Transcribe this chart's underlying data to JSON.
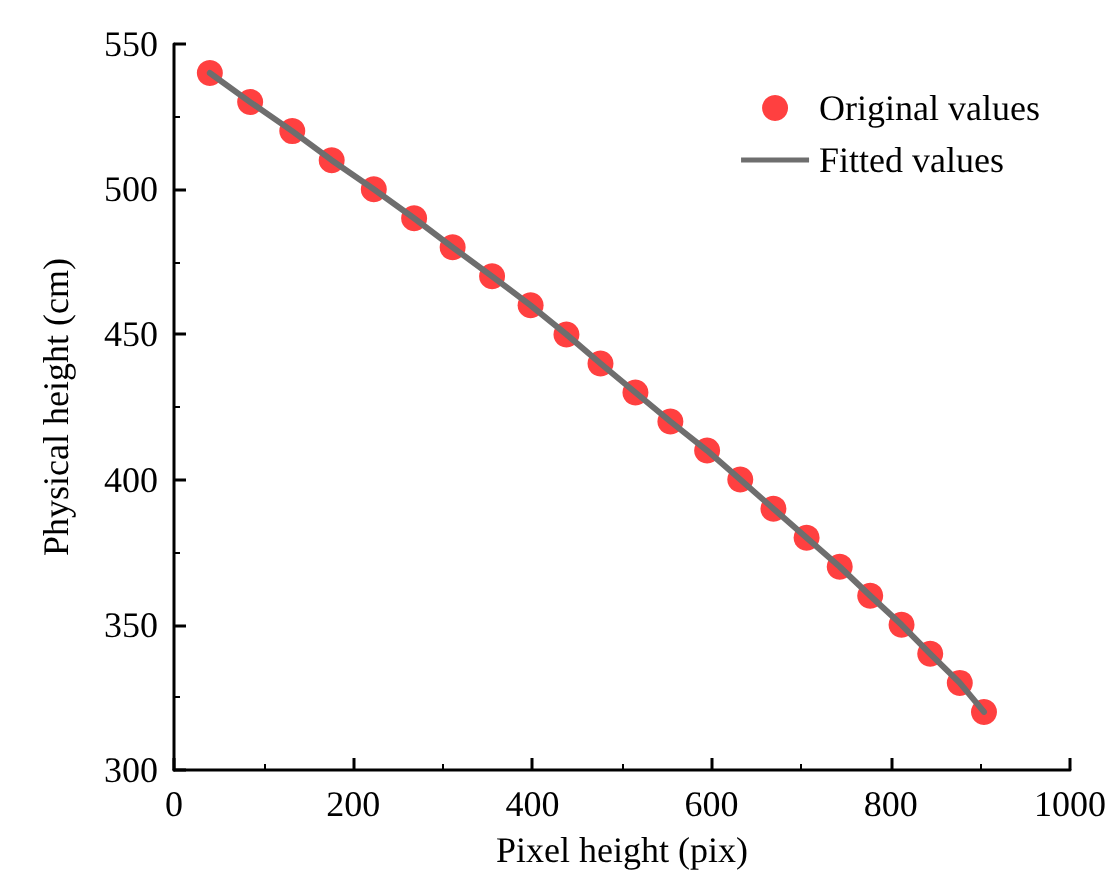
{
  "chart_data": {
    "type": "scatter",
    "xlabel": "Pixel height (pix)",
    "ylabel": "Physical height (cm)",
    "x": [
      40,
      85,
      132,
      176,
      223,
      268,
      311,
      355,
      398,
      438,
      476,
      515,
      554,
      595,
      632,
      669,
      706,
      743,
      777,
      812,
      844,
      877,
      904
    ],
    "series": [
      {
        "name": "Original values",
        "color": "#ff4040",
        "marker": "circle",
        "values": [
          540,
          530,
          520,
          510,
          500,
          490,
          480,
          470,
          460,
          450,
          440,
          430,
          420,
          410,
          400,
          390,
          380,
          370,
          360,
          350,
          340,
          330,
          320
        ]
      },
      {
        "name": "Fitted values",
        "type": "line",
        "color": "#6e6e6e",
        "marker": "none",
        "line_style": "solid",
        "values": [
          540,
          530,
          520,
          510,
          500,
          490,
          480,
          470,
          460,
          450,
          440,
          430,
          420,
          410,
          400,
          390,
          380,
          370,
          360,
          350,
          340,
          330,
          320
        ]
      }
    ],
    "xlim": [
      0,
      1000
    ],
    "xticks": [
      0,
      200,
      400,
      600,
      800,
      1000
    ],
    "ylim": [
      300,
      550
    ],
    "yticks": [
      300,
      350,
      400,
      450,
      500,
      550
    ],
    "grid": false,
    "legend": "top right"
  }
}
